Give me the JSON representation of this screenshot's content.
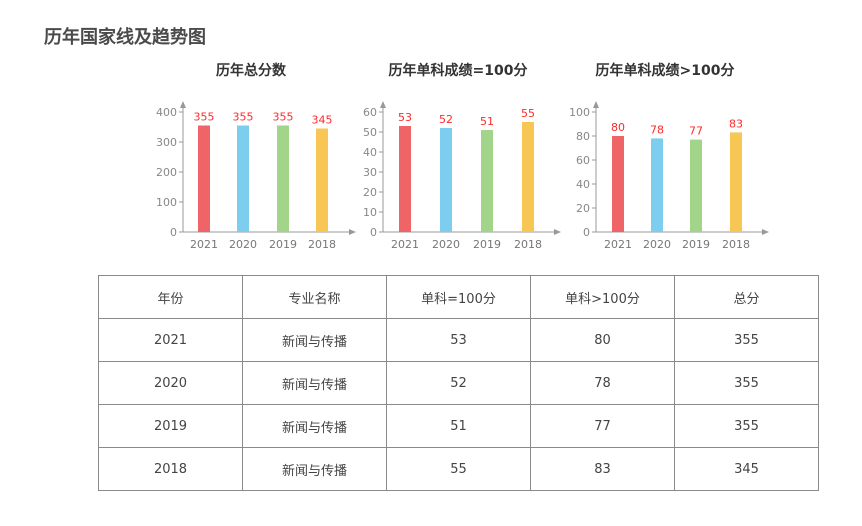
{
  "page_title": "历年国家线及趋势图",
  "colors": [
    "#ef6567",
    "#7ccdee",
    "#a2d48a",
    "#f8c655"
  ],
  "label_color": "#ff2a2a",
  "chart_data": [
    {
      "type": "bar",
      "title": "历年总分数",
      "categories": [
        "2021",
        "2020",
        "2019",
        "2018"
      ],
      "values": [
        355,
        355,
        355,
        345
      ],
      "ylim": [
        0,
        400
      ],
      "yticks": [
        0,
        100,
        200,
        300,
        400
      ],
      "grid": false,
      "legend": "none"
    },
    {
      "type": "bar",
      "title": "历年单科成绩=100分",
      "categories": [
        "2021",
        "2020",
        "2019",
        "2018"
      ],
      "values": [
        53,
        52,
        51,
        55
      ],
      "ylim": [
        0,
        60
      ],
      "yticks": [
        0,
        10,
        20,
        30,
        40,
        50,
        60
      ],
      "grid": false,
      "legend": "none"
    },
    {
      "type": "bar",
      "title": "历年单科成绩>100分",
      "categories": [
        "2021",
        "2020",
        "2019",
        "2018"
      ],
      "values": [
        80,
        78,
        77,
        83
      ],
      "ylim": [
        0,
        100
      ],
      "yticks": [
        0,
        20,
        40,
        60,
        80,
        100
      ],
      "grid": false,
      "legend": "none"
    }
  ],
  "table": {
    "headers": [
      "年份",
      "专业名称",
      "单科=100分",
      "单科>100分",
      "总分"
    ],
    "rows": [
      [
        "2021",
        "新闻与传播",
        "53",
        "80",
        "355"
      ],
      [
        "2020",
        "新闻与传播",
        "52",
        "78",
        "355"
      ],
      [
        "2019",
        "新闻与传播",
        "51",
        "77",
        "355"
      ],
      [
        "2018",
        "新闻与传播",
        "55",
        "83",
        "345"
      ]
    ]
  }
}
